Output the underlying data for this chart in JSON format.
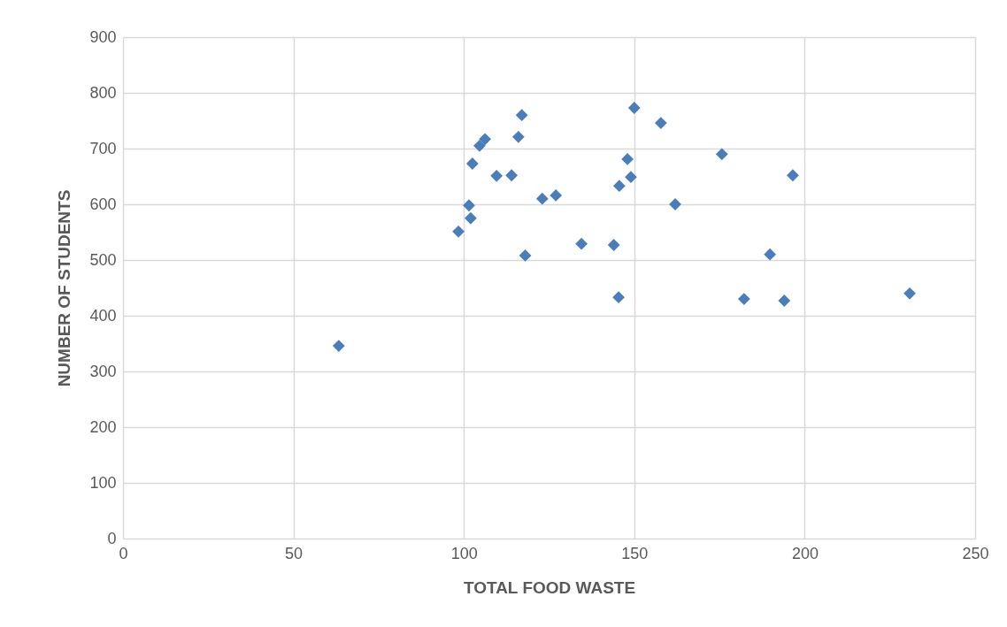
{
  "chart_data": {
    "type": "scatter",
    "xlabel": "TOTAL FOOD WASTE",
    "ylabel": "NUMBER OF STUDENTS",
    "x": [
      63.3,
      98.4,
      101.5,
      102,
      102.5,
      104.6,
      106.2,
      109.6,
      114,
      116,
      117,
      118,
      123,
      127,
      134.5,
      144,
      145.4,
      145.6,
      148,
      149,
      150,
      157.8,
      162,
      175.7,
      182.2,
      189.8,
      194,
      196.5,
      230.8
    ],
    "values": [
      346,
      551,
      598,
      575,
      673,
      705,
      717,
      651,
      652,
      721,
      760,
      508,
      610,
      616,
      529,
      527,
      433,
      633,
      681,
      649,
      773,
      746,
      600,
      690,
      430,
      510,
      427,
      652,
      440
    ],
    "color": "#4a7ebb",
    "marker": "diamond",
    "grid": true,
    "xlim": [
      0,
      250
    ],
    "xticks": [
      0,
      50,
      100,
      150,
      200,
      250
    ],
    "ylim": [
      0,
      900
    ],
    "yticks": [
      0,
      100,
      200,
      300,
      400,
      500,
      600,
      700,
      800,
      900
    ]
  }
}
